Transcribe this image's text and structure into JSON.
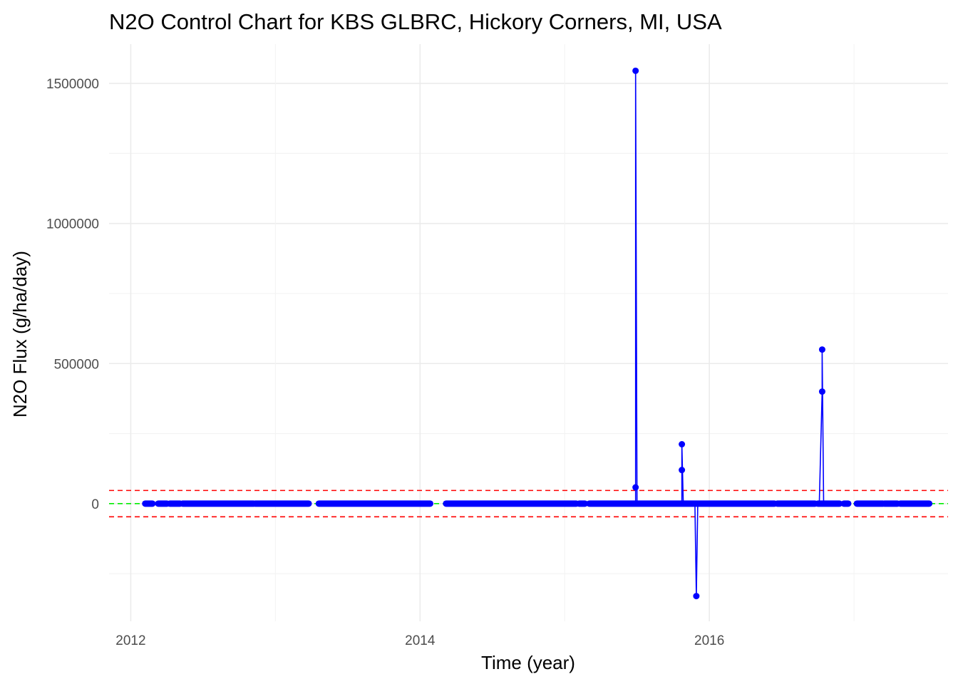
{
  "chart_data": {
    "type": "line",
    "title": "N2O Control Chart for KBS GLBRC, Hickory Corners, MI, USA",
    "xlabel": "Time (year)",
    "ylabel": "N2O Flux (g/ha/day)",
    "x_ticks": [
      2012,
      2014,
      2016
    ],
    "x_tick_labels": [
      "2012",
      "2014",
      "2016"
    ],
    "y_ticks": [
      0,
      500000,
      1000000,
      1500000
    ],
    "y_tick_labels": [
      "0",
      "500000",
      "1000000",
      "1500000"
    ],
    "xlim": [
      2011.85,
      2017.65
    ],
    "ylim": [
      -420000,
      1640000
    ],
    "grid": true,
    "legend": "none",
    "colors": {
      "series": "#0000ff",
      "center_line": "#00ee00",
      "control_limits": "#ff0000"
    },
    "reference_lines": [
      {
        "kind": "upper-control-limit",
        "y": 47000,
        "style": "dashed",
        "color": "#ff0000"
      },
      {
        "kind": "center-line",
        "y": 0,
        "style": "dashed",
        "color": "#00ee00"
      },
      {
        "kind": "lower-control-limit",
        "y": -47000,
        "style": "dashed",
        "color": "#ff0000"
      }
    ],
    "baseline_segments": [
      [
        2012.1,
        2012.15
      ],
      [
        2012.19,
        2012.25
      ],
      [
        2012.27,
        2012.34
      ],
      [
        2012.36,
        2012.85
      ],
      [
        2012.86,
        2013.23
      ],
      [
        2013.3,
        2014.07
      ],
      [
        2014.18,
        2015.08
      ],
      [
        2015.1,
        2015.14
      ],
      [
        2015.17,
        2016.45
      ],
      [
        2016.47,
        2016.73
      ],
      [
        2016.75,
        2016.9
      ],
      [
        2016.93,
        2016.96
      ],
      [
        2017.02,
        2017.2
      ],
      [
        2017.21,
        2017.3
      ],
      [
        2017.32,
        2017.52
      ]
    ],
    "series": [
      {
        "values": [
          {
            "x": 2015.49,
            "y": 0
          },
          {
            "x": 2015.49,
            "y": 58000
          },
          {
            "x": 2015.49,
            "y": 1545000
          },
          {
            "x": 2015.5,
            "y": 0
          },
          {
            "x": 2015.81,
            "y": 0
          },
          {
            "x": 2015.81,
            "y": 120000
          },
          {
            "x": 2015.81,
            "y": 212000
          },
          {
            "x": 2015.82,
            "y": 0
          },
          {
            "x": 2015.9,
            "y": 0
          },
          {
            "x": 2015.91,
            "y": -330000
          },
          {
            "x": 2015.92,
            "y": 0
          },
          {
            "x": 2016.76,
            "y": 0
          },
          {
            "x": 2016.78,
            "y": 400000
          },
          {
            "x": 2016.78,
            "y": 550000
          },
          {
            "x": 2016.79,
            "y": 0
          }
        ]
      }
    ]
  }
}
